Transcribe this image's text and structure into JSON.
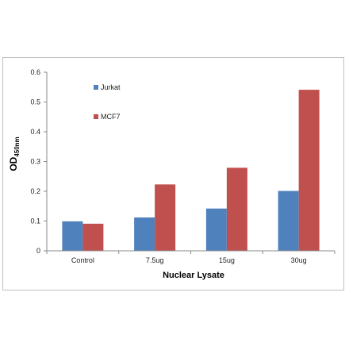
{
  "chart_data": {
    "type": "bar",
    "categories": [
      "Control",
      "7.5ug",
      "15ug",
      "30ug"
    ],
    "series": [
      {
        "name": "Jurkat",
        "values": [
          0.099,
          0.112,
          0.142,
          0.201
        ],
        "color": "#4f81bd"
      },
      {
        "name": "MCF7",
        "values": [
          0.091,
          0.223,
          0.279,
          0.541
        ],
        "color": "#c0504d"
      }
    ],
    "title": "",
    "xlabel": "Nuclear Lysate",
    "ylabel": "OD",
    "ylabel_subscript": "450nm",
    "ylim": [
      0,
      0.6
    ],
    "yticks": [
      "0",
      "0.1",
      "0.2",
      "0.3",
      "0.4",
      "0.5",
      "0.6"
    ],
    "grid": false,
    "legend_position": "top-left"
  }
}
